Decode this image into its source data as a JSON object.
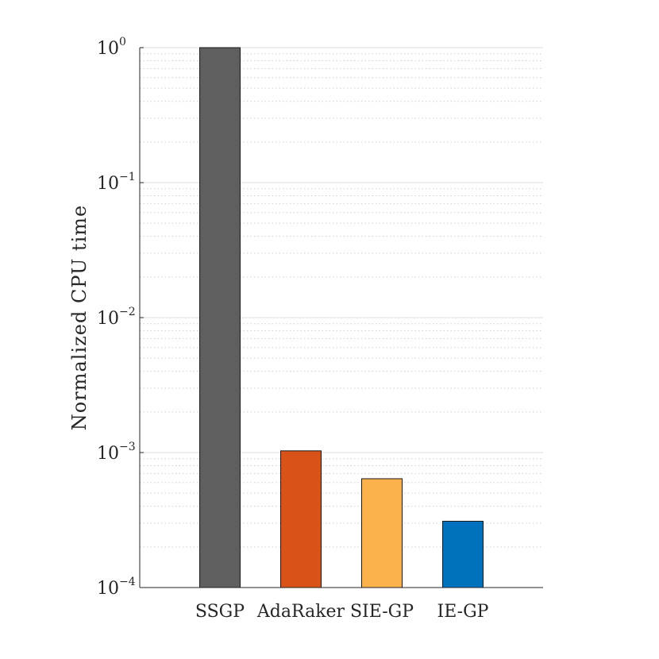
{
  "chart_data": {
    "type": "bar",
    "title": "",
    "xlabel": "",
    "ylabel": "Normalized CPU time",
    "yscale": "log",
    "ylim": [
      0.0001,
      1
    ],
    "grid": true,
    "categories": [
      "SSGP",
      "AdaRaker",
      "SIE-GP",
      "IE-GP"
    ],
    "values": [
      1,
      0.00103,
      0.00064,
      0.00031
    ],
    "colors": [
      "#5f5f5f",
      "#d95319",
      "#fbb24c",
      "#0072bd"
    ],
    "yticks": [
      {
        "base": "10",
        "exp": "0",
        "value": 1
      },
      {
        "base": "10",
        "exp": "−1",
        "value": 0.1
      },
      {
        "base": "10",
        "exp": "−2",
        "value": 0.01
      },
      {
        "base": "10",
        "exp": "−3",
        "value": 0.001
      },
      {
        "base": "10",
        "exp": "−4",
        "value": 0.0001
      }
    ]
  }
}
